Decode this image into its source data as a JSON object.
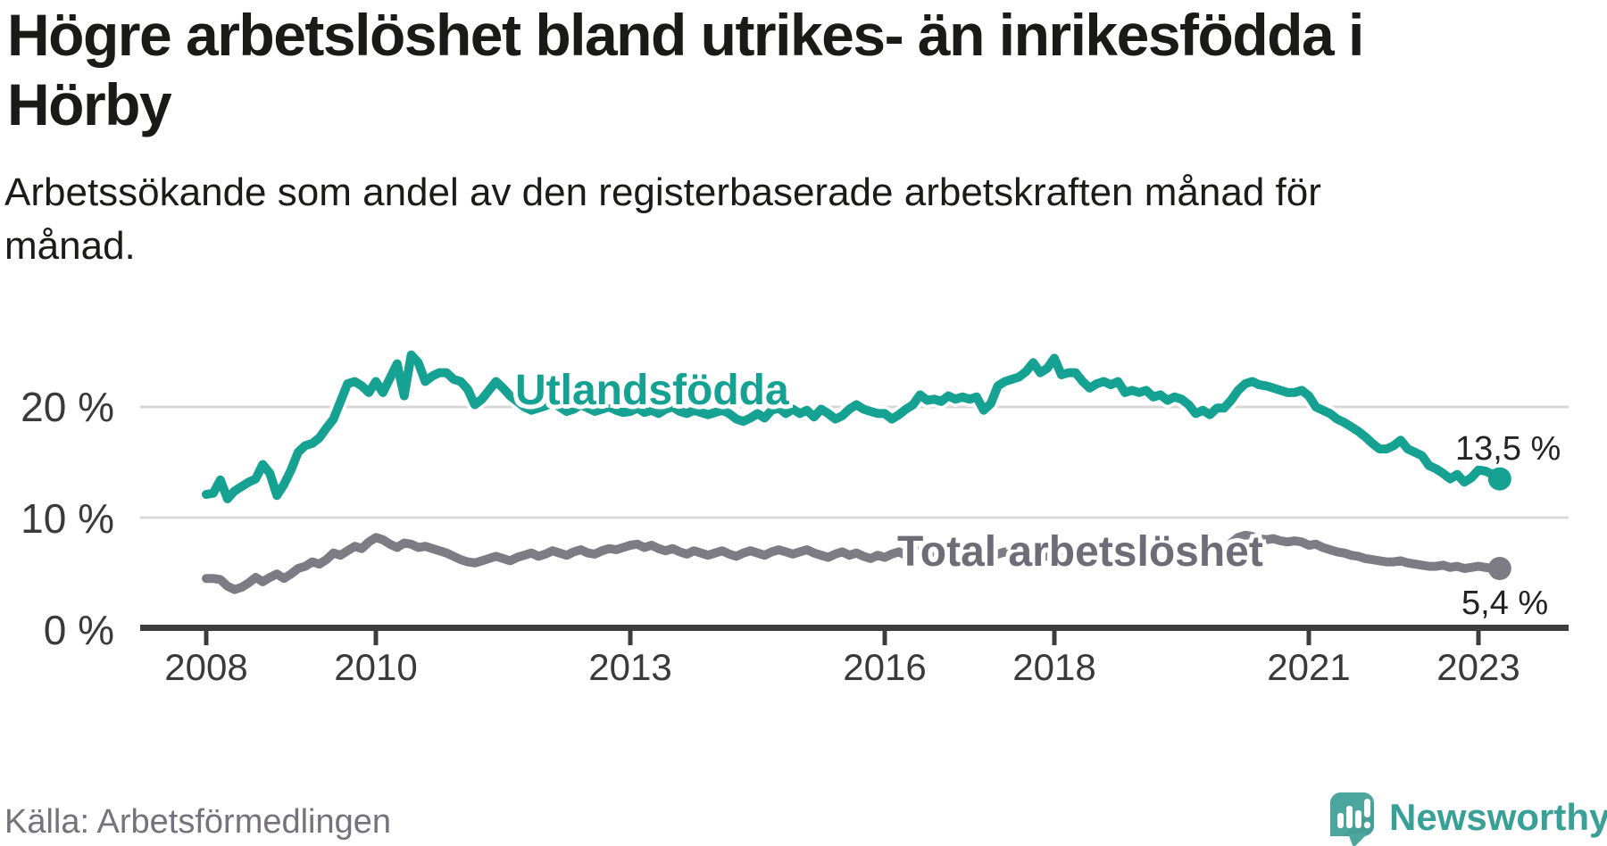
{
  "header": {
    "title": "Högre arbetslöshet bland utrikes- än inrikesfödda i Hörby",
    "title_lines": [
      "Högre arbetslöshet bland utrikes- än inrikesfödda i",
      "Hörby"
    ],
    "subtitle": "Arbetssökande som andel av den registerbaserade arbetskraften månad för månad.",
    "subtitle_lines": [
      "Arbetssökande som andel av den registerbaserade arbetskraften månad för",
      "månad."
    ]
  },
  "footer": {
    "source": "Källa: Arbetsförmedlingen",
    "brand": "Newsworthy",
    "brand_color": "#38a096",
    "brand_icon": "newsworthy-speech-bubble-chart-icon"
  },
  "chart_data": {
    "type": "line",
    "title": "Högre arbetslöshet bland utrikes- än inrikesfödda i Hörby",
    "subtitle": "Arbetssökande som andel av den registerbaserade arbetskraften månad för månad.",
    "xlabel": "",
    "ylabel": "",
    "x_range": [
      "2008-01",
      "2023-04"
    ],
    "points_per_year": 12,
    "x_start_year": 2008,
    "ylim": [
      0,
      26
    ],
    "grid": "horizontal-only",
    "grid_color": "#d9d9d9",
    "axis_color": "#3d3d3d",
    "tick_label_color": "#3a3a3a",
    "x_ticks": [
      "2008",
      "2010",
      "2013",
      "2016",
      "2018",
      "2021",
      "2023"
    ],
    "x_tick_years": [
      2008,
      2010,
      2013,
      2016,
      2018,
      2021,
      2023
    ],
    "y_ticks": [
      "20 %",
      "10 %",
      "0 %"
    ],
    "y_tick_values": [
      20,
      10,
      0
    ],
    "legend_position": "inline-labels-on-lines",
    "series": [
      {
        "name": "Utlandsfödda",
        "color": "#16a292",
        "end_label": "13,5 %",
        "end_value": 13.5,
        "values": [
          12.1,
          12.2,
          13.4,
          11.7,
          12.4,
          12.8,
          13.2,
          13.5,
          14.8,
          14.0,
          12.0,
          13.0,
          14.3,
          15.9,
          16.5,
          16.7,
          17.2,
          18.1,
          18.9,
          20.5,
          22.1,
          22.3,
          21.9,
          21.3,
          22.3,
          21.3,
          22.6,
          23.9,
          21.0,
          24.7,
          24.0,
          22.3,
          22.8,
          23.1,
          23.1,
          22.5,
          22.3,
          21.6,
          20.2,
          20.7,
          21.5,
          22.3,
          21.7,
          21.0,
          20.5,
          20.0,
          19.7,
          19.9,
          20.1,
          20.4,
          20.0,
          19.6,
          19.8,
          20.2,
          19.9,
          19.6,
          19.8,
          20.0,
          19.7,
          19.5,
          19.6,
          19.9,
          19.5,
          19.7,
          19.4,
          19.8,
          20.0,
          19.6,
          19.4,
          19.7,
          19.5,
          19.3,
          19.5,
          19.7,
          19.4,
          18.9,
          18.7,
          19.0,
          19.4,
          19.0,
          19.7,
          19.9,
          19.4,
          19.8,
          19.4,
          19.7,
          19.1,
          19.8,
          19.4,
          18.9,
          19.2,
          19.8,
          20.2,
          19.8,
          19.6,
          19.4,
          19.4,
          18.9,
          19.3,
          19.8,
          20.2,
          21.1,
          20.6,
          20.7,
          20.5,
          21.0,
          20.7,
          20.9,
          20.7,
          20.9,
          19.7,
          20.3,
          21.9,
          22.3,
          22.5,
          22.7,
          23.2,
          24.0,
          23.1,
          23.5,
          24.4,
          22.9,
          23.1,
          23.1,
          22.3,
          21.7,
          22.1,
          22.3,
          22.0,
          22.3,
          21.3,
          21.5,
          21.3,
          21.5,
          20.9,
          21.1,
          20.6,
          20.9,
          20.7,
          20.2,
          19.4,
          19.7,
          19.3,
          19.9,
          19.9,
          20.6,
          21.5,
          22.1,
          22.3,
          22.0,
          21.9,
          21.7,
          21.5,
          21.3,
          21.3,
          21.5,
          21.0,
          20.0,
          19.7,
          19.4,
          18.9,
          18.6,
          18.2,
          17.8,
          17.3,
          16.7,
          16.2,
          16.2,
          16.5,
          17.0,
          16.2,
          15.9,
          15.6,
          14.7,
          14.4,
          14.0,
          13.5,
          13.9,
          13.2,
          13.6,
          14.3,
          14.2,
          13.9,
          13.5
        ]
      },
      {
        "name": "Total arbetslöshet",
        "color": "#7d7b84",
        "end_label": "5,4 %",
        "end_value": 5.4,
        "values": [
          4.5,
          4.5,
          4.4,
          3.8,
          3.5,
          3.7,
          4.1,
          4.6,
          4.2,
          4.6,
          4.9,
          4.5,
          4.9,
          5.4,
          5.6,
          6.0,
          5.8,
          6.2,
          6.8,
          6.6,
          7.0,
          7.4,
          7.2,
          7.8,
          8.2,
          8.0,
          7.6,
          7.3,
          7.7,
          7.6,
          7.3,
          7.4,
          7.2,
          7.0,
          6.8,
          6.5,
          6.2,
          6.0,
          5.9,
          6.1,
          6.3,
          6.5,
          6.3,
          6.1,
          6.4,
          6.6,
          6.8,
          6.5,
          6.7,
          7.0,
          6.8,
          6.6,
          6.9,
          7.1,
          6.8,
          6.7,
          7.0,
          7.2,
          7.1,
          7.3,
          7.5,
          7.6,
          7.3,
          7.5,
          7.2,
          7.0,
          7.2,
          6.9,
          6.7,
          7.0,
          6.8,
          6.6,
          6.8,
          7.0,
          6.7,
          6.5,
          6.8,
          7.0,
          6.8,
          6.6,
          6.9,
          7.1,
          6.9,
          6.7,
          6.9,
          7.1,
          6.8,
          6.6,
          6.4,
          6.7,
          6.9,
          6.6,
          6.8,
          6.5,
          6.3,
          6.6,
          6.4,
          6.7,
          6.9,
          6.6,
          6.8,
          7.0,
          6.7,
          6.5,
          6.8,
          6.6,
          6.9,
          6.7,
          6.5,
          6.8,
          6.6,
          6.4,
          6.7,
          6.9,
          6.6,
          6.4,
          6.7,
          6.5,
          6.3,
          6.6,
          6.4,
          6.6,
          6.3,
          6.1,
          6.4,
          6.6,
          6.3,
          6.1,
          6.4,
          6.2,
          6.0,
          6.3,
          6.1,
          6.3,
          6.0,
          5.9,
          6.2,
          6.4,
          6.1,
          6.0,
          6.3,
          6.1,
          6.4,
          6.7,
          7.0,
          7.7,
          8.2,
          8.4,
          8.3,
          8.1,
          8.0,
          8.1,
          7.9,
          7.8,
          7.9,
          7.8,
          7.5,
          7.6,
          7.3,
          7.1,
          6.9,
          6.8,
          6.6,
          6.5,
          6.3,
          6.2,
          6.1,
          6.0,
          6.0,
          6.1,
          5.9,
          5.8,
          5.7,
          5.6,
          5.6,
          5.7,
          5.5,
          5.6,
          5.4,
          5.5,
          5.6,
          5.5,
          5.4,
          5.4
        ]
      }
    ]
  }
}
